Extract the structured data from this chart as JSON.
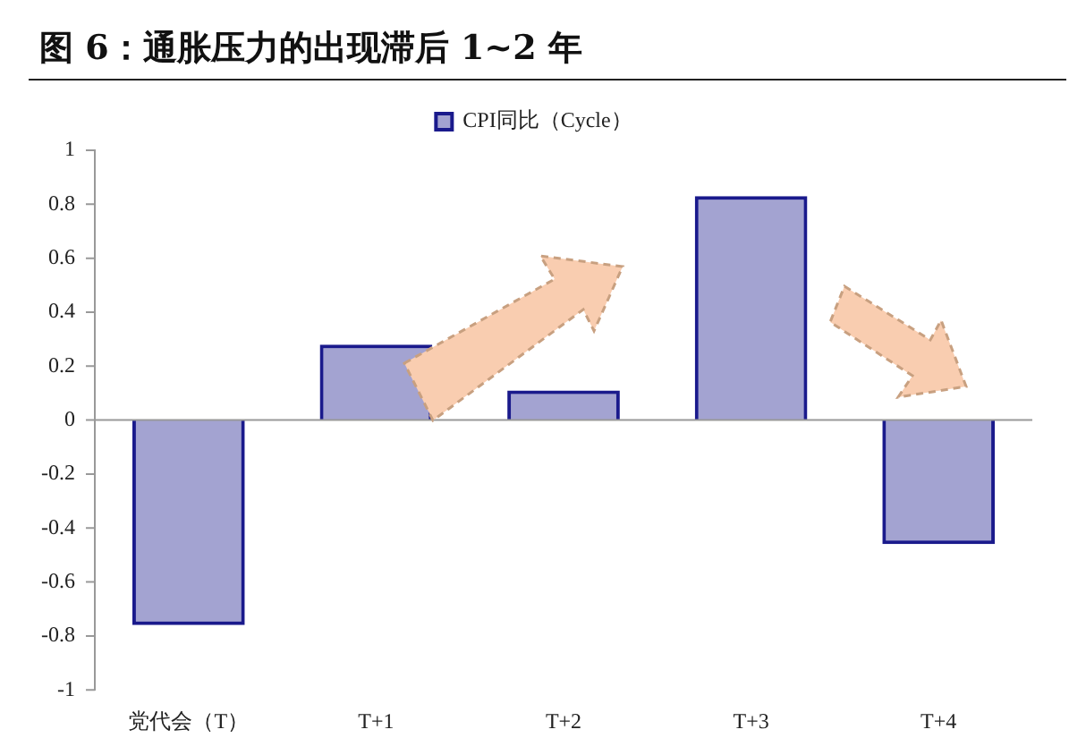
{
  "chart_data": {
    "type": "bar",
    "title": "图 6：通胀压力的出现滞后 1~2 年",
    "categories": [
      "党代会（T）",
      "T+1",
      "T+2",
      "T+3",
      "T+4"
    ],
    "series": [
      {
        "name": "CPI同比（Cycle）",
        "color": "#1a1a8c",
        "values": [
          -0.76,
          0.28,
          0.11,
          0.83,
          -0.46
        ]
      }
    ],
    "ylim": [
      -1,
      1
    ],
    "yticks": [
      -1,
      -0.8,
      -0.6,
      -0.4,
      -0.2,
      0,
      0.2,
      0.4,
      0.6,
      0.8,
      1
    ],
    "legend": "top"
  }
}
